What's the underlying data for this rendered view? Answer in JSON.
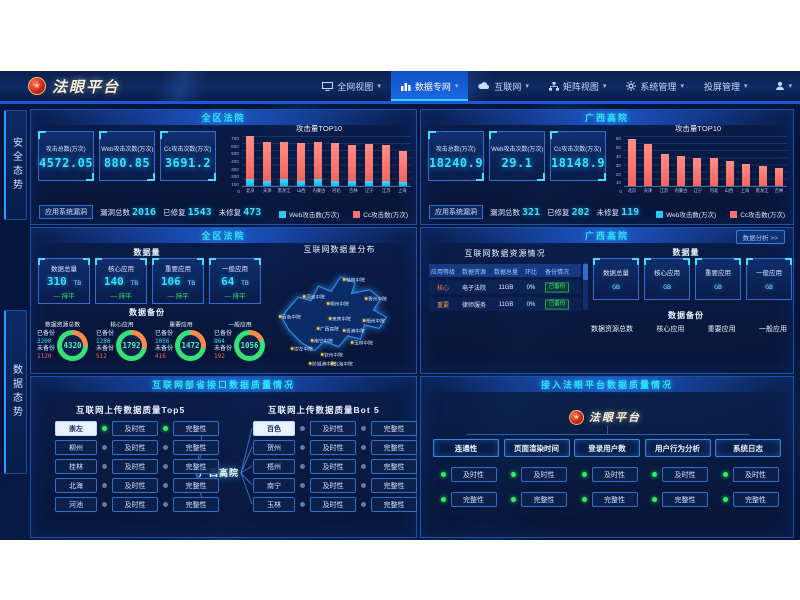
{
  "colors": {
    "accent": "#2ee4ff",
    "bar_web": "#29c8f0",
    "bar_cc": "#f4736e",
    "green": "#2ff05a",
    "red": "#ff5f5f",
    "orange": "#ff8a45",
    "gold": "#ffd23e"
  },
  "nav": {
    "logo_text": "法眼平台",
    "items": [
      {
        "label": "全网视图",
        "icon": "monitor-icon",
        "active": false
      },
      {
        "label": "数据专网",
        "icon": "bar-chart-icon",
        "active": true
      },
      {
        "label": "互联网",
        "icon": "cloud-icon",
        "active": false
      },
      {
        "label": "矩阵视图",
        "icon": "sitemap-icon",
        "active": false
      },
      {
        "label": "系统管理",
        "icon": "gear-icon",
        "active": false
      },
      {
        "label": "投屏管理",
        "icon": "",
        "active": false
      }
    ]
  },
  "sidebar": {
    "tabs": [
      {
        "label": "安全态势"
      },
      {
        "label": "数据态势"
      }
    ]
  },
  "row1": {
    "left": {
      "title": "全区法院",
      "stats": [
        {
          "label": "攻击总数(万次)",
          "value": "4572.05"
        },
        {
          "label": "Web攻击次数(万次)",
          "value": "880.85"
        },
        {
          "label": "Cc攻击次数(万次)",
          "value": "3691.2"
        }
      ],
      "vuln": {
        "name": "应用系统漏洞",
        "items": [
          {
            "label": "漏洞总数",
            "value": "2016"
          },
          {
            "label": "已修复",
            "value": "1543"
          },
          {
            "label": "未修复",
            "value": "473"
          }
        ]
      },
      "chart": {
        "type": "bar",
        "title": "攻击量TOP10",
        "ymax": 700,
        "yticks": [
          700,
          600,
          500,
          400,
          300,
          200,
          100,
          0
        ],
        "categories": [
          "北京",
          "天津",
          "黑龙江",
          "山西",
          "内蒙古",
          "河北",
          "吉林",
          "辽宁",
          "江苏",
          "上海"
        ],
        "web": [
          100,
          65,
          100,
          75,
          95,
          75,
          70,
          75,
          65,
          60
        ],
        "cc": [
          600,
          545,
          520,
          525,
          520,
          525,
          510,
          520,
          505,
          425
        ]
      },
      "legend": [
        {
          "label": "Web攻击数(万次)",
          "color": "#29c8f0"
        },
        {
          "label": "Cc攻击数(万次)",
          "color": "#f4736e"
        }
      ]
    },
    "right": {
      "title": "广西高院",
      "stats": [
        {
          "label": "攻击总数(万次)",
          "value": "18240.9"
        },
        {
          "label": "Web攻击次数(万次)",
          "value": "29.1"
        },
        {
          "label": "Cc攻击次数(万次)",
          "value": "18148.9"
        }
      ],
      "vuln": {
        "name": "应用系统漏洞",
        "items": [
          {
            "label": "漏洞总数",
            "value": "321"
          },
          {
            "label": "已修复",
            "value": "202"
          },
          {
            "label": "未修复",
            "value": "119"
          }
        ]
      },
      "chart": {
        "type": "bar",
        "title": "攻击量TOP10",
        "ymax": 60,
        "yticks": [
          60,
          50,
          40,
          30,
          20,
          10,
          0
        ],
        "categories": [
          "北京",
          "天津",
          "江苏",
          "内蒙古",
          "辽宁",
          "河北",
          "山西",
          "上海",
          "黑龙江",
          "吉林"
        ],
        "web": [
          0,
          0,
          0,
          0,
          0,
          0,
          0,
          0,
          0,
          0
        ],
        "cc": [
          57,
          50,
          38,
          36,
          34,
          34,
          30,
          27,
          24,
          22
        ]
      },
      "legend": [
        {
          "label": "Web攻击数(万次)",
          "color": "#29c8f0"
        },
        {
          "label": "Cc攻击数(万次)",
          "color": "#f4736e"
        }
      ]
    }
  },
  "row2": {
    "left": {
      "title": "全区法院",
      "volume_title": "数据量",
      "volumes": [
        {
          "label": "数据总量",
          "value": "310",
          "unit": "TB",
          "trend": "持平"
        },
        {
          "label": "核心应用",
          "value": "140",
          "unit": "TB",
          "trend": "持平"
        },
        {
          "label": "重要应用",
          "value": "106",
          "unit": "TB",
          "trend": "持平"
        },
        {
          "label": "一般应用",
          "value": "64",
          "unit": "TB",
          "trend": "持平"
        }
      ],
      "backup_title": "数据备份",
      "backups": [
        {
          "label": "数据资源总数",
          "done_label": "已备份",
          "done": "3200",
          "undone_label": "未备份",
          "undone": "1120",
          "total": "4320",
          "pct": 74
        },
        {
          "label": "核心应用",
          "done_label": "已备份",
          "done": "1280",
          "undone_label": "未备份",
          "undone": "512",
          "total": "1792",
          "pct": 71
        },
        {
          "label": "重要应用",
          "done_label": "已备份",
          "done": "1056",
          "undone_label": "未备份",
          "undone": "416",
          "total": "1472",
          "pct": 72
        },
        {
          "label": "一般应用",
          "done_label": "已备份",
          "done": "864",
          "undone_label": "未备份",
          "undone": "192",
          "total": "1056",
          "pct": 82
        }
      ],
      "map": {
        "title": "互联网数据量分布",
        "labels": [
          "桂林中院",
          "河池中院",
          "贺州中院",
          "柳州中院",
          "百色中院",
          "来宾中院",
          "广西高院",
          "梧州中院",
          "贵港中院",
          "南宁中院",
          "玉林中院",
          "崇左中院",
          "钦州中院",
          "防城港中院",
          "北海中院"
        ]
      }
    },
    "right": {
      "title": "广西高院",
      "action_button": "数据分析 >>",
      "table": {
        "title": "互联网数据资源情况",
        "columns": [
          "应用等级",
          "数据资源",
          "数据总量",
          "环比",
          "备份情况"
        ],
        "rows": [
          {
            "level": "核心",
            "level_color": "#ff7a45",
            "resource": "电子法院",
            "total": "11GB",
            "ratio": "0%",
            "backup": "已备份"
          },
          {
            "level": "重要",
            "level_color": "#ffa245",
            "resource": "律师服务",
            "total": "11GB",
            "ratio": "0%",
            "backup": "已备份"
          }
        ]
      },
      "volume_title": "数据量",
      "volumes": [
        {
          "label": "数据总量",
          "value": "",
          "unit": "GB"
        },
        {
          "label": "核心应用",
          "value": "",
          "unit": "GB"
        },
        {
          "label": "重要应用",
          "value": "",
          "unit": "GB"
        },
        {
          "label": "一般应用",
          "value": "",
          "unit": "GB"
        }
      ],
      "backup_title": "数据备份",
      "backup_labels": [
        "数据资源总数",
        "核心应用",
        "重要应用",
        "一般应用"
      ]
    }
  },
  "row3": {
    "left": {
      "title": "互联网部省接口数据质量情况",
      "center_node": "广西高院",
      "top5": {
        "title": "互联网上传数据质量Top5",
        "timely_label": "及时性",
        "complete_label": "完整性",
        "rows": [
          {
            "city": "崇左",
            "t_on": true,
            "c_on": true,
            "hl": true
          },
          {
            "city": "柳州",
            "t_on": false,
            "c_on": false,
            "hl": false
          },
          {
            "city": "桂林",
            "t_on": false,
            "c_on": false,
            "hl": false
          },
          {
            "city": "北海",
            "t_on": false,
            "c_on": false,
            "hl": false
          },
          {
            "city": "河池",
            "t_on": false,
            "c_on": false,
            "hl": false
          }
        ]
      },
      "bot5": {
        "title": "互联网上传数据质量Bot 5",
        "timely_label": "及时性",
        "complete_label": "完整性",
        "rows": [
          {
            "city": "百色",
            "t_on": false,
            "c_on": false,
            "hl": true
          },
          {
            "city": "贺州",
            "t_on": false,
            "c_on": false,
            "hl": false
          },
          {
            "city": "梧州",
            "t_on": false,
            "c_on": false,
            "hl": false
          },
          {
            "city": "南宁",
            "t_on": false,
            "c_on": false,
            "hl": false
          },
          {
            "city": "玉林",
            "t_on": false,
            "c_on": false,
            "hl": false
          }
        ]
      }
    },
    "right": {
      "title": "接入法眼平台数据质量情况",
      "platform": "法眼平台",
      "timely_label": "及时性",
      "complete_label": "完整性",
      "branches": [
        {
          "label": "连通性",
          "t_on": true,
          "c_on": true
        },
        {
          "label": "页面渲染时间",
          "t_on": true,
          "c_on": true
        },
        {
          "label": "登录用户数",
          "t_on": true,
          "c_on": true
        },
        {
          "label": "用户行为分析",
          "t_on": true,
          "c_on": true
        },
        {
          "label": "系统日志",
          "t_on": true,
          "c_on": true
        }
      ]
    }
  }
}
